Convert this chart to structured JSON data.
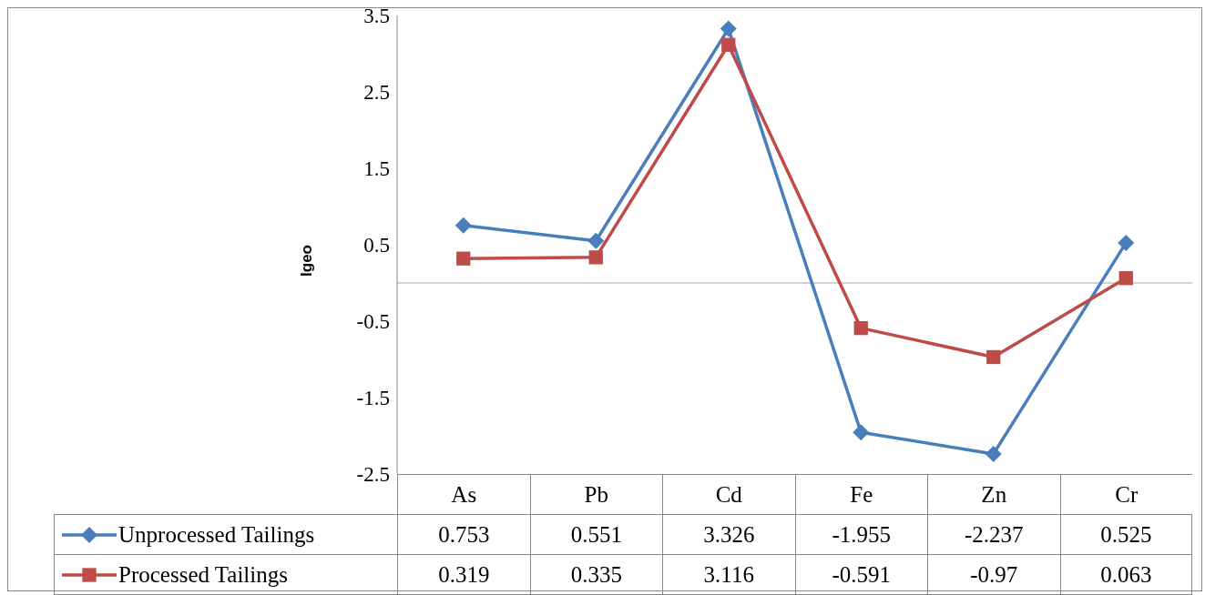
{
  "chart_data": {
    "type": "line",
    "ylabel": "Igeo",
    "categories": [
      "As",
      "Pb",
      "Cd",
      "Fe",
      "Zn",
      "Cr"
    ],
    "series": [
      {
        "name": "Unprocessed Tailings",
        "color": "#4a7ebb",
        "marker": "diamond",
        "values": [
          0.753,
          0.551,
          3.326,
          -1.955,
          -2.237,
          0.525
        ]
      },
      {
        "name": "Processed Tailings",
        "color": "#be4b48",
        "marker": "square",
        "values": [
          0.319,
          0.335,
          3.116,
          -0.591,
          -0.97,
          0.063
        ]
      }
    ],
    "ylim": [
      -2.5,
      3.5
    ],
    "yticks": [
      -2.5,
      -1.5,
      -0.5,
      0.5,
      1.5,
      2.5,
      3.5
    ],
    "ref_lines": [
      {
        "axis": "y",
        "value": 0,
        "color": "#a6a6a6"
      }
    ],
    "grid": false,
    "legend": "bottom",
    "data_labels": true,
    "line_style": "solid"
  }
}
